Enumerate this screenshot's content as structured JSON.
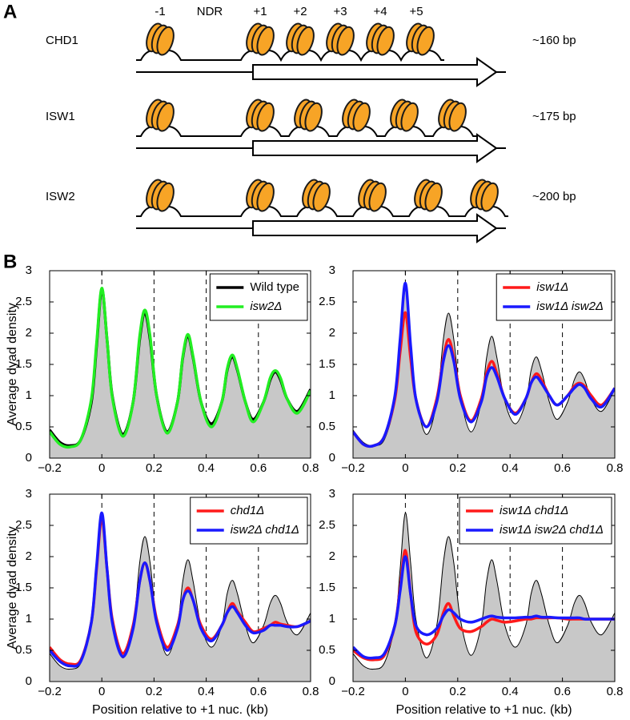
{
  "panel_a": {
    "label": "A",
    "headers": [
      "-1",
      "NDR",
      "+1",
      "+2",
      "+3",
      "+4",
      "+5"
    ],
    "rows": [
      {
        "name": "CHD1",
        "spacing": "~160 bp"
      },
      {
        "name": "ISW1",
        "spacing": "~175 bp"
      },
      {
        "name": "ISW2",
        "spacing": "~200 bp"
      }
    ]
  },
  "panel_b": {
    "label": "B"
  },
  "chart_data": [
    {
      "type": "line",
      "ylabel": "Average dyad density",
      "xlim": [
        -0.2,
        0.8
      ],
      "ylim": [
        0,
        3
      ],
      "xticks": [
        {
          "value": -0.2,
          "label": "−0.2"
        },
        0,
        0.2,
        0.4,
        0.6,
        0.8
      ],
      "yticks": [
        0,
        0.5,
        1,
        1.5,
        2,
        2.5,
        3
      ],
      "vlines": [
        0,
        0.2,
        0.4,
        0.6
      ],
      "legend": "upper right",
      "x": [
        -0.2,
        -0.16,
        -0.12,
        -0.08,
        -0.04,
        -0.02,
        0,
        0.02,
        0.04,
        0.08,
        0.12,
        0.145,
        0.165,
        0.185,
        0.21,
        0.25,
        0.29,
        0.31,
        0.33,
        0.35,
        0.38,
        0.42,
        0.46,
        0.48,
        0.5,
        0.52,
        0.55,
        0.58,
        0.62,
        0.645,
        0.665,
        0.685,
        0.71,
        0.75,
        0.8
      ],
      "series": [
        {
          "name": "Wild type",
          "color": "#000000",
          "fill": "#c8c8c8",
          "width": 3.5,
          "italic": false,
          "values": [
            0.45,
            0.25,
            0.2,
            0.3,
            0.9,
            1.8,
            2.7,
            1.9,
            1.0,
            0.38,
            0.9,
            1.9,
            2.32,
            1.9,
            1.0,
            0.42,
            0.9,
            1.6,
            1.95,
            1.6,
            0.9,
            0.55,
            0.9,
            1.4,
            1.62,
            1.4,
            0.9,
            0.62,
            0.9,
            1.25,
            1.38,
            1.25,
            0.95,
            0.75,
            1.1
          ]
        },
        {
          "name": "isw2Δ",
          "color": "#22ee22",
          "width": 3.5,
          "italic": true,
          "values": [
            0.42,
            0.22,
            0.18,
            0.3,
            0.95,
            1.85,
            2.72,
            1.9,
            0.98,
            0.35,
            0.9,
            1.95,
            2.37,
            1.95,
            1.0,
            0.4,
            0.9,
            1.62,
            1.98,
            1.62,
            0.9,
            0.5,
            0.9,
            1.42,
            1.65,
            1.42,
            0.9,
            0.58,
            0.9,
            1.28,
            1.4,
            1.28,
            0.95,
            0.72,
            1.08
          ]
        }
      ]
    },
    {
      "type": "line",
      "xlim": [
        -0.2,
        0.8
      ],
      "ylim": [
        0,
        3
      ],
      "xticks": [
        {
          "value": -0.2,
          "label": "−0.2"
        },
        0,
        0.2,
        0.4,
        0.6,
        0.8
      ],
      "yticks": [
        0,
        0.5,
        1,
        1.5,
        2,
        2.5,
        3
      ],
      "vlines": [
        0,
        0.2,
        0.4,
        0.6
      ],
      "legend": "upper right",
      "x": [
        -0.2,
        -0.16,
        -0.12,
        -0.08,
        -0.04,
        -0.02,
        0,
        0.02,
        0.04,
        0.08,
        0.12,
        0.145,
        0.165,
        0.185,
        0.21,
        0.25,
        0.29,
        0.31,
        0.33,
        0.35,
        0.38,
        0.42,
        0.46,
        0.48,
        0.5,
        0.52,
        0.55,
        0.58,
        0.62,
        0.645,
        0.665,
        0.685,
        0.71,
        0.75,
        0.8
      ],
      "series": [
        {
          "color": "#000000",
          "fill": "#c8c8c8",
          "width": 1,
          "values": [
            0.45,
            0.25,
            0.2,
            0.3,
            0.9,
            1.8,
            2.7,
            1.9,
            1.0,
            0.38,
            0.9,
            1.9,
            2.32,
            1.9,
            1.0,
            0.42,
            0.9,
            1.6,
            1.95,
            1.6,
            0.9,
            0.55,
            0.9,
            1.4,
            1.62,
            1.4,
            0.9,
            0.62,
            0.9,
            1.25,
            1.38,
            1.25,
            0.95,
            0.75,
            1.1
          ]
        },
        {
          "name": "isw1Δ",
          "color": "#ff1a1a",
          "width": 3.5,
          "italic": true,
          "values": [
            0.42,
            0.22,
            0.2,
            0.35,
            0.95,
            1.7,
            2.33,
            1.6,
            0.95,
            0.5,
            0.95,
            1.6,
            1.9,
            1.6,
            1.0,
            0.6,
            0.95,
            1.35,
            1.55,
            1.35,
            0.95,
            0.72,
            0.95,
            1.2,
            1.35,
            1.25,
            1.0,
            0.85,
            1.0,
            1.15,
            1.2,
            1.15,
            1.0,
            0.85,
            1.12
          ]
        },
        {
          "name": "isw1Δ isw2Δ",
          "color": "#1a1aff",
          "width": 3.5,
          "italic": true,
          "values": [
            0.42,
            0.22,
            0.2,
            0.35,
            1.0,
            1.9,
            2.8,
            1.8,
            0.95,
            0.5,
            0.9,
            1.55,
            1.8,
            1.55,
            0.95,
            0.58,
            0.9,
            1.3,
            1.45,
            1.3,
            0.95,
            0.7,
            0.95,
            1.2,
            1.3,
            1.2,
            1.0,
            0.85,
            1.0,
            1.12,
            1.18,
            1.12,
            0.95,
            0.82,
            1.12
          ]
        }
      ]
    },
    {
      "type": "line",
      "xlabel": "Position relative to +1 nuc. (kb)",
      "ylabel": "Average dyad density",
      "xlim": [
        -0.2,
        0.8
      ],
      "ylim": [
        0,
        3
      ],
      "xticks": [
        {
          "value": -0.2,
          "label": "−0.2"
        },
        0,
        0.2,
        0.4,
        0.6,
        0.8
      ],
      "yticks": [
        0,
        0.5,
        1,
        1.5,
        2,
        2.5,
        3
      ],
      "vlines": [
        0,
        0.2,
        0.4,
        0.6
      ],
      "legend": "upper right",
      "x": [
        -0.2,
        -0.16,
        -0.12,
        -0.08,
        -0.04,
        -0.02,
        0,
        0.02,
        0.04,
        0.08,
        0.12,
        0.145,
        0.165,
        0.185,
        0.21,
        0.25,
        0.29,
        0.31,
        0.33,
        0.35,
        0.38,
        0.42,
        0.46,
        0.48,
        0.5,
        0.52,
        0.55,
        0.58,
        0.62,
        0.645,
        0.665,
        0.685,
        0.71,
        0.75,
        0.8
      ],
      "series": [
        {
          "color": "#000000",
          "fill": "#c8c8c8",
          "width": 1,
          "values": [
            0.45,
            0.25,
            0.2,
            0.3,
            0.9,
            1.8,
            2.7,
            1.9,
            1.0,
            0.38,
            0.9,
            1.9,
            2.32,
            1.9,
            1.0,
            0.42,
            0.9,
            1.6,
            1.95,
            1.6,
            0.9,
            0.55,
            0.9,
            1.4,
            1.62,
            1.4,
            0.9,
            0.62,
            0.9,
            1.25,
            1.38,
            1.25,
            0.95,
            0.75,
            1.1
          ]
        },
        {
          "name": "chd1Δ",
          "color": "#ff1a1a",
          "width": 3.5,
          "italic": true,
          "values": [
            0.55,
            0.35,
            0.28,
            0.35,
            0.95,
            1.8,
            2.62,
            1.8,
            1.0,
            0.45,
            0.9,
            1.6,
            1.9,
            1.6,
            1.0,
            0.55,
            0.9,
            1.3,
            1.5,
            1.3,
            0.9,
            0.68,
            0.9,
            1.1,
            1.25,
            1.12,
            0.95,
            0.8,
            0.85,
            0.9,
            0.95,
            0.92,
            0.9,
            0.88,
            0.97
          ]
        },
        {
          "name": "isw2Δ chd1Δ",
          "color": "#1a1aff",
          "width": 3.5,
          "italic": true,
          "values": [
            0.5,
            0.32,
            0.25,
            0.33,
            0.95,
            1.85,
            2.7,
            1.8,
            0.95,
            0.4,
            0.85,
            1.6,
            1.9,
            1.6,
            0.95,
            0.5,
            0.85,
            1.3,
            1.45,
            1.3,
            0.85,
            0.65,
            0.9,
            1.1,
            1.2,
            1.1,
            0.9,
            0.78,
            0.82,
            0.9,
            0.9,
            0.9,
            0.88,
            0.88,
            0.97
          ]
        }
      ]
    },
    {
      "type": "line",
      "xlabel": "Position relative to +1 nuc. (kb)",
      "xlim": [
        -0.2,
        0.8
      ],
      "ylim": [
        0,
        3
      ],
      "xticks": [
        {
          "value": -0.2,
          "label": "−0.2"
        },
        0,
        0.2,
        0.4,
        0.6,
        0.8
      ],
      "yticks": [
        0,
        0.5,
        1,
        1.5,
        2,
        2.5,
        3
      ],
      "vlines": [
        0,
        0.2,
        0.4,
        0.6
      ],
      "legend": "upper right",
      "x": [
        -0.2,
        -0.16,
        -0.12,
        -0.08,
        -0.04,
        -0.02,
        0,
        0.02,
        0.04,
        0.08,
        0.12,
        0.145,
        0.165,
        0.185,
        0.21,
        0.25,
        0.29,
        0.31,
        0.33,
        0.35,
        0.38,
        0.42,
        0.46,
        0.48,
        0.5,
        0.52,
        0.55,
        0.58,
        0.62,
        0.645,
        0.665,
        0.685,
        0.71,
        0.75,
        0.8
      ],
      "series": [
        {
          "color": "#000000",
          "fill": "#c8c8c8",
          "width": 1,
          "values": [
            0.45,
            0.25,
            0.2,
            0.3,
            0.9,
            1.8,
            2.7,
            1.9,
            1.0,
            0.38,
            0.9,
            1.9,
            2.32,
            1.9,
            1.0,
            0.42,
            0.9,
            1.6,
            1.95,
            1.6,
            0.9,
            0.55,
            0.9,
            1.4,
            1.62,
            1.4,
            0.9,
            0.62,
            0.9,
            1.25,
            1.38,
            1.25,
            0.95,
            0.75,
            1.1
          ]
        },
        {
          "name": "isw1Δ chd1Δ",
          "color": "#ff1a1a",
          "width": 3.5,
          "italic": true,
          "values": [
            0.5,
            0.38,
            0.35,
            0.42,
            0.9,
            1.5,
            2.1,
            1.4,
            0.8,
            0.6,
            0.75,
            1.1,
            1.25,
            1.05,
            0.85,
            0.8,
            0.88,
            0.95,
            1.0,
            0.98,
            0.95,
            0.97,
            1.0,
            1.0,
            1.02,
            1.02,
            1.02,
            1.02,
            1.0,
            1.0,
            1.0,
            1.0,
            1.0,
            1.0,
            1.0
          ]
        },
        {
          "name": "isw1Δ isw2Δ chd1Δ",
          "color": "#1a1aff",
          "width": 3.5,
          "italic": true,
          "values": [
            0.55,
            0.4,
            0.38,
            0.45,
            0.9,
            1.45,
            2.0,
            1.4,
            0.9,
            0.75,
            0.85,
            1.05,
            1.15,
            1.1,
            1.0,
            0.95,
            1.0,
            1.03,
            1.05,
            1.03,
            1.02,
            1.02,
            1.03,
            1.03,
            1.05,
            1.03,
            1.03,
            1.02,
            1.02,
            1.02,
            1.02,
            1.0,
            1.0,
            1.0,
            1.0
          ]
        }
      ]
    }
  ]
}
